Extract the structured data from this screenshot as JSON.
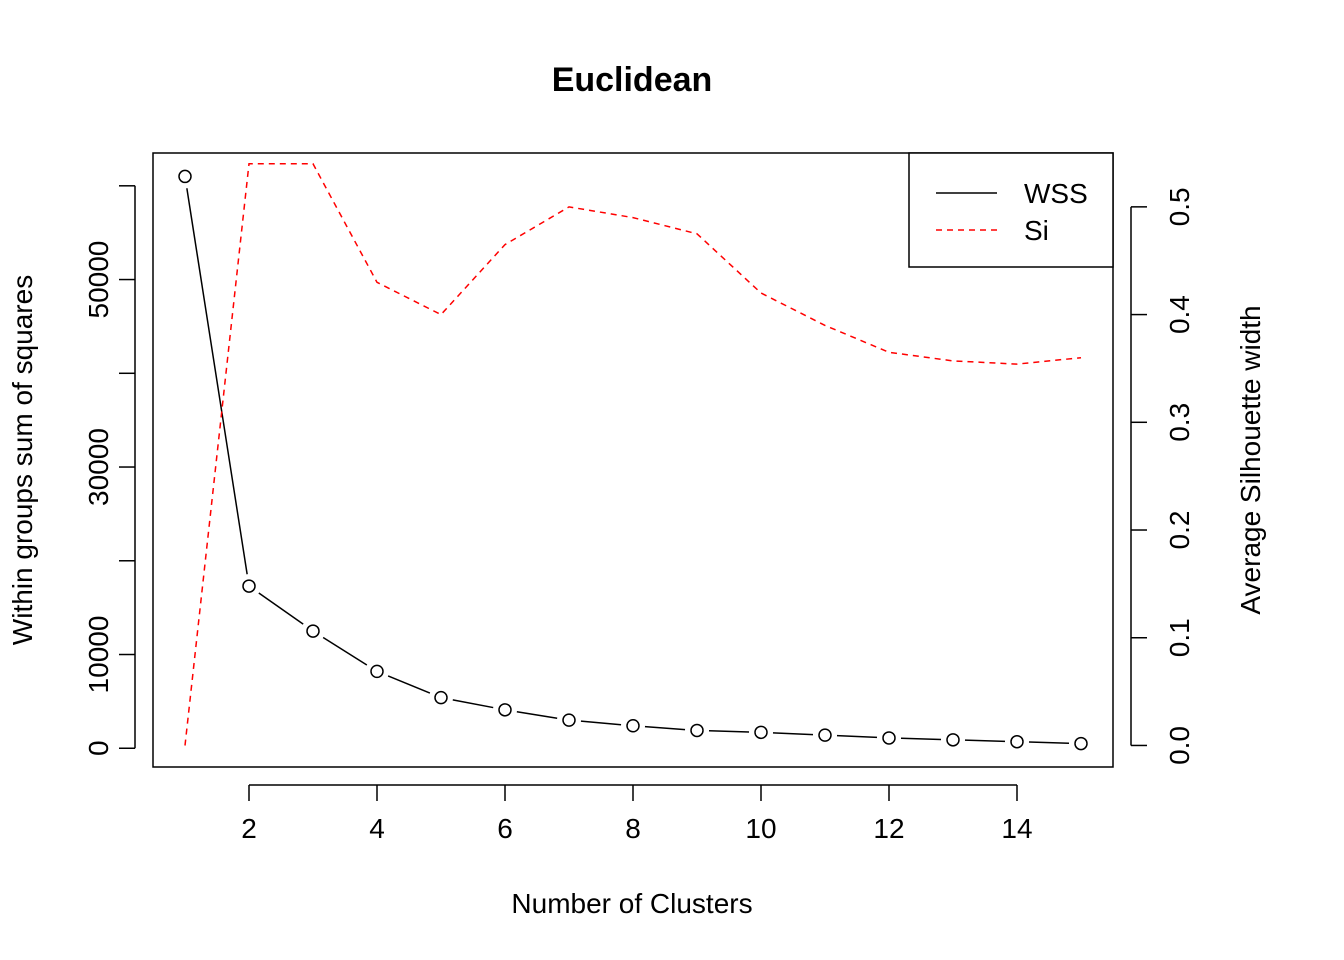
{
  "chart_data": {
    "type": "line",
    "title": "Euclidean",
    "xlabel": "Number of Clusters",
    "ylabel": "Within groups sum of squares",
    "y2label": "Average Silhouette width",
    "xlim": [
      0.5,
      15.5
    ],
    "ylim": [
      -2000,
      63500
    ],
    "y2lim": [
      -0.02,
      0.55
    ],
    "xticks": [
      2,
      4,
      6,
      8,
      10,
      12,
      14
    ],
    "yticks": [
      0,
      10000,
      20000,
      30000,
      40000,
      50000,
      60000
    ],
    "ytick_labels": [
      "0",
      "10000",
      "",
      "30000",
      "",
      "50000",
      ""
    ],
    "y2ticks": [
      0.0,
      0.1,
      0.2,
      0.3,
      0.4,
      0.5
    ],
    "y2tick_labels": [
      "0.0",
      "0.1",
      "0.2",
      "0.3",
      "0.4",
      "0.5"
    ],
    "x": [
      1,
      2,
      3,
      4,
      5,
      6,
      7,
      8,
      9,
      10,
      11,
      12,
      13,
      14,
      15
    ],
    "series": [
      {
        "name": "WSS",
        "axis": "left",
        "color": "#000000",
        "line_style": "solid",
        "markers": "open-circle",
        "values": [
          61000,
          17300,
          12500,
          8200,
          5400,
          4100,
          3000,
          2400,
          1900,
          1700,
          1400,
          1100,
          900,
          700,
          500
        ]
      },
      {
        "name": "Si",
        "axis": "right",
        "color": "#ff0000",
        "line_style": "dashed",
        "markers": "none",
        "values": [
          0.0,
          0.54,
          0.54,
          0.43,
          0.4,
          0.465,
          0.5,
          0.49,
          0.475,
          0.42,
          0.39,
          0.365,
          0.357,
          0.354,
          0.36
        ]
      }
    ],
    "legend": {
      "position": "top-right",
      "entries": [
        "WSS",
        "Si"
      ]
    },
    "grid": false
  }
}
